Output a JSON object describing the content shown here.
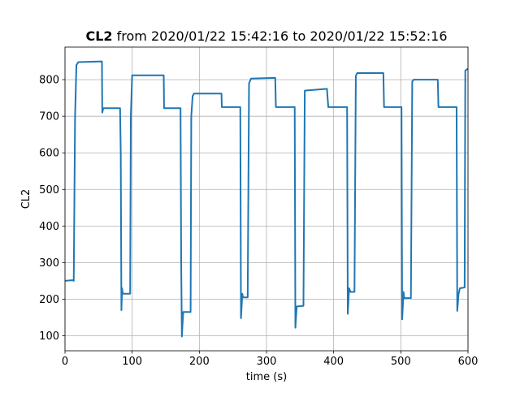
{
  "chart_data": {
    "type": "line",
    "title_variable": "CL2",
    "title": "from 2020/01/22 15:42:16 to 2020/01/22 15:52:16",
    "xlabel": "time (s)",
    "ylabel": "CL2",
    "x": [
      0,
      12,
      13,
      15,
      17,
      20,
      55,
      55.5,
      57,
      82,
      83,
      84,
      85,
      86,
      97,
      98,
      100,
      147,
      147.5,
      172,
      173,
      174,
      176,
      187,
      188,
      190,
      192,
      233,
      233.5,
      261,
      262,
      264,
      265,
      272,
      274,
      277,
      313,
      314,
      342,
      343,
      345,
      355,
      357,
      390,
      392,
      420,
      421,
      423,
      425,
      431,
      433,
      435,
      474,
      475,
      501,
      502,
      504,
      505,
      515,
      517,
      519,
      555,
      556,
      583,
      584,
      586,
      588,
      595,
      596,
      600
    ],
    "values": [
      250,
      252,
      250,
      700,
      840,
      848,
      850,
      710,
      722,
      722,
      600,
      170,
      230,
      215,
      215,
      700,
      812,
      812,
      722,
      722,
      300,
      98,
      165,
      165,
      700,
      755,
      762,
      762,
      725,
      725,
      148,
      215,
      205,
      205,
      790,
      803,
      805,
      725,
      725,
      122,
      180,
      182,
      770,
      775,
      725,
      725,
      160,
      230,
      220,
      220,
      810,
      818,
      818,
      725,
      725,
      145,
      220,
      203,
      203,
      795,
      800,
      800,
      725,
      725,
      168,
      215,
      230,
      232,
      825,
      830
    ],
    "color": "#1f77b4",
    "xlim": [
      0,
      600
    ],
    "xticks": [
      0,
      100,
      200,
      300,
      400,
      500,
      600
    ],
    "ylim": [
      59,
      889
    ],
    "yticks": [
      100,
      200,
      300,
      400,
      500,
      600,
      700,
      800
    ],
    "grid": true
  }
}
